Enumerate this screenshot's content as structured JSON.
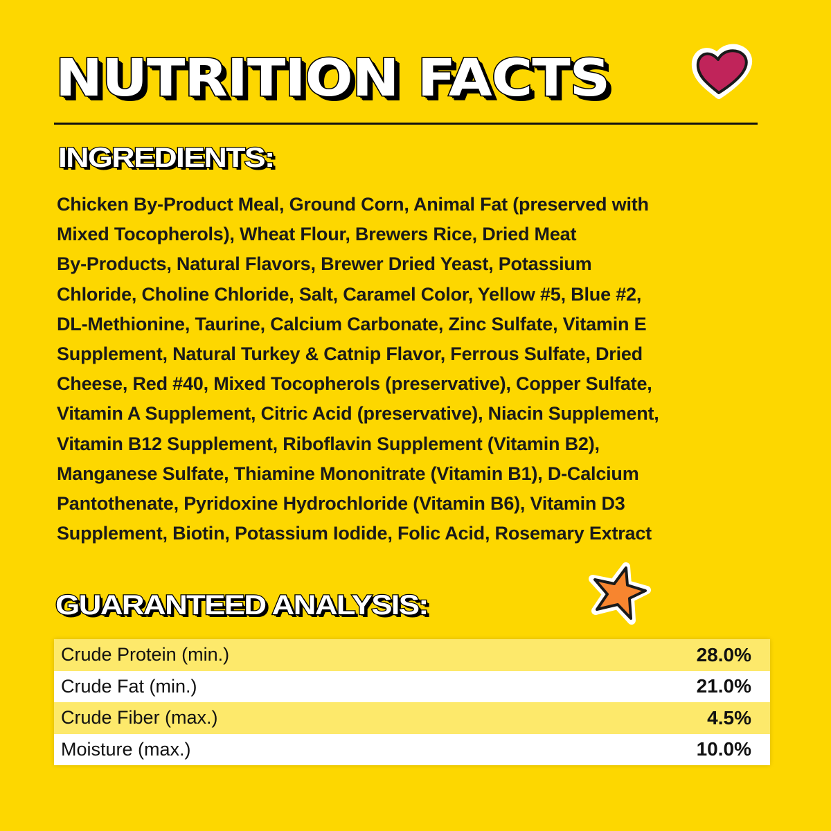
{
  "title": "NUTRITION FACTS",
  "ingredients": {
    "heading": "INGREDIENTS:",
    "lines": [
      "Chicken By-Product Meal, Ground Corn, Animal Fat (preserved with",
      "Mixed Tocopherols), Wheat Flour, Brewers Rice, Dried Meat",
      "By-Products, Natural Flavors, Brewer Dried Yeast, Potassium",
      "Chloride, Choline Chloride, Salt, Caramel Color, Yellow #5, Blue #2,",
      "DL-Methionine, Taurine, Calcium Carbonate, Zinc Sulfate, Vitamin E",
      "Supplement, Natural Turkey & Catnip Flavor, Ferrous Sulfate, Dried",
      "Cheese, Red #40, Mixed Tocopherols (preservative), Copper Sulfate,",
      "Vitamin A Supplement, Citric Acid (preservative), Niacin Supplement,",
      "Vitamin B12 Supplement, Riboflavin Supplement (Vitamin B2),",
      "Manganese Sulfate, Thiamine Mononitrate (Vitamin B1), D-Calcium",
      "Pantothenate, Pyridoxine Hydrochloride (Vitamin B6), Vitamin D3",
      "Supplement, Biotin, Potassium Iodide, Folic Acid, Rosemary Extract"
    ]
  },
  "analysis": {
    "heading": "GUARANTEED ANALYSIS:",
    "rows": [
      {
        "label": "Crude Protein (min.)",
        "value": "28.0%"
      },
      {
        "label": "Crude Fat (min.)",
        "value": "21.0%"
      },
      {
        "label": "Crude Fiber (max.)",
        "value": "4.5%"
      },
      {
        "label": "Moisture (max.)",
        "value": "10.0%"
      }
    ]
  },
  "colors": {
    "background": "#FDD700",
    "row_highlight": "#FDE96B",
    "heart": "#C0245A",
    "star": "#F7852F"
  },
  "icons": [
    "heart-icon",
    "star-icon"
  ]
}
